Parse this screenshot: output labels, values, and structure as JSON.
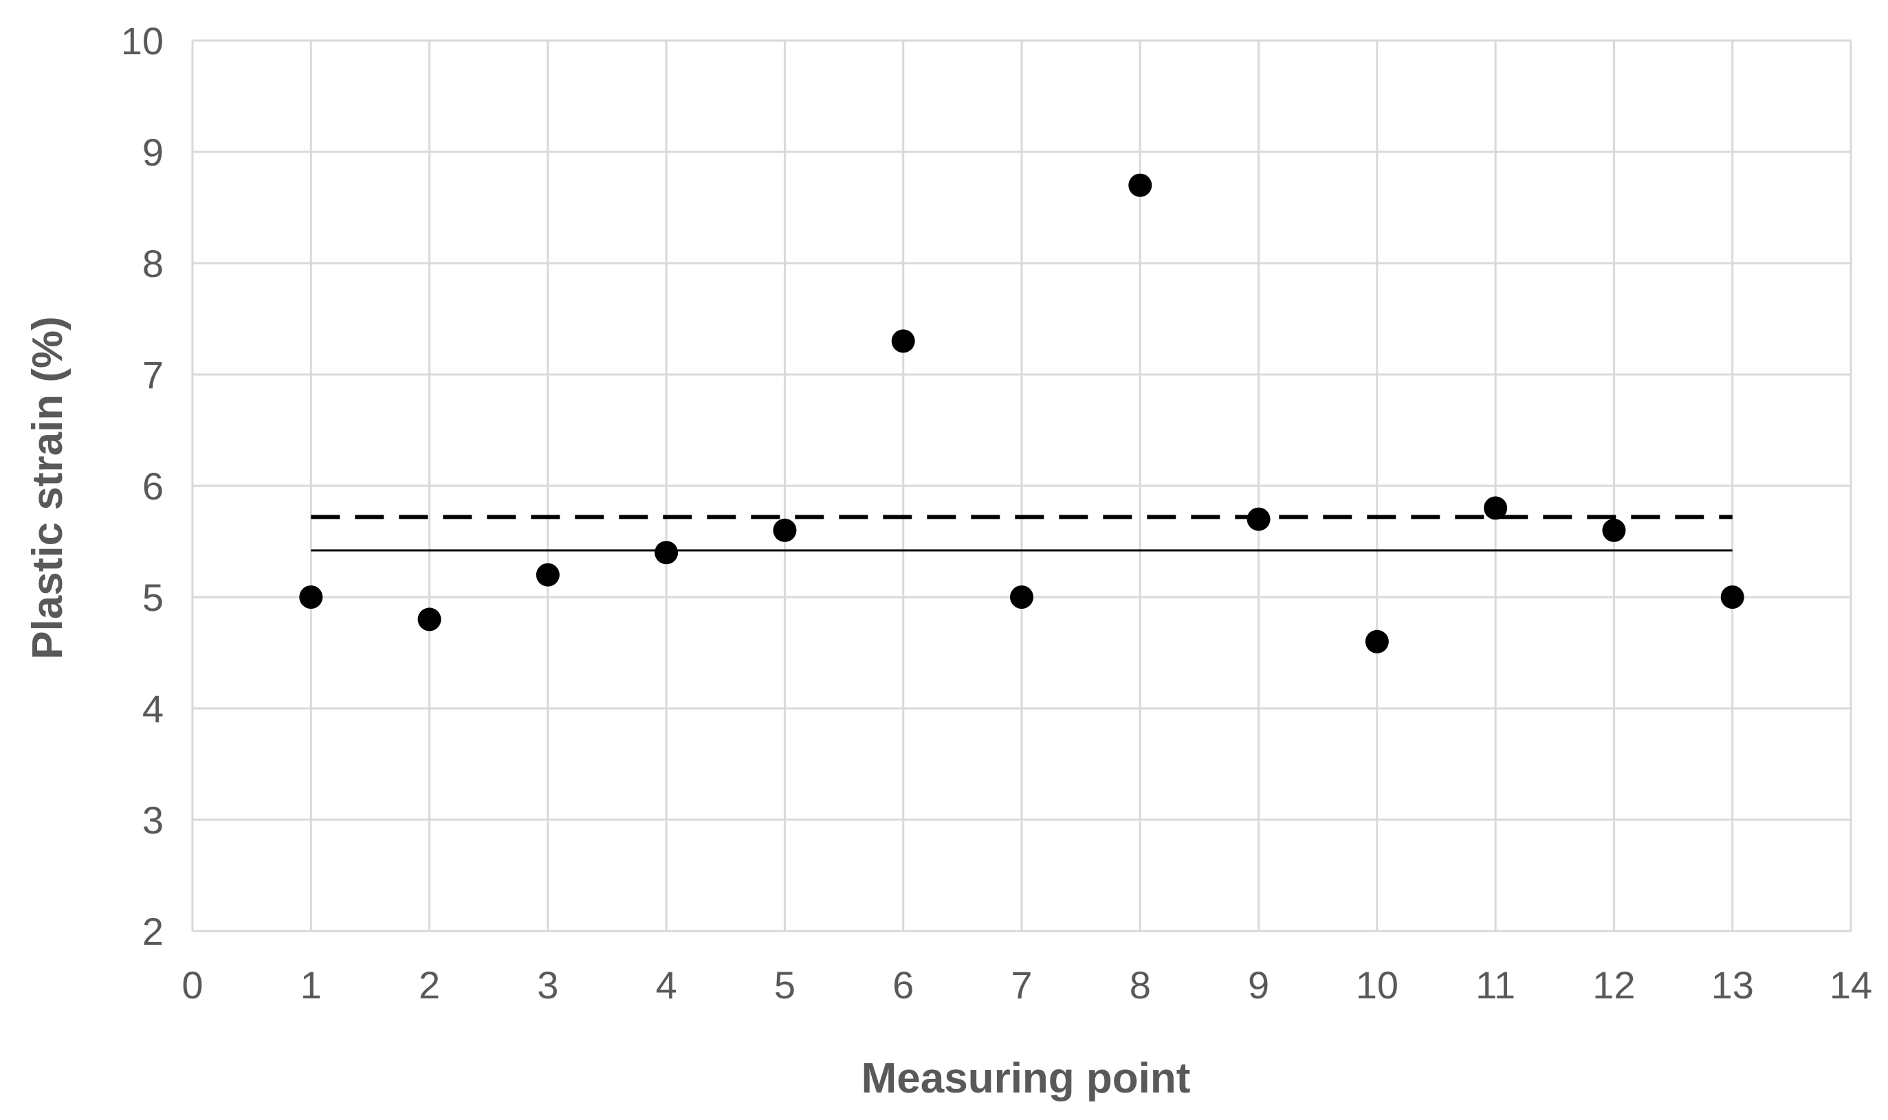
{
  "chart_data": {
    "type": "scatter",
    "title": "",
    "xlabel": "Measuring point",
    "ylabel": "Plastic strain (%)",
    "xlim": [
      0,
      14
    ],
    "ylim": [
      2,
      10
    ],
    "xticks": [
      0,
      1,
      2,
      3,
      4,
      5,
      6,
      7,
      8,
      9,
      10,
      11,
      12,
      13,
      14
    ],
    "yticks": [
      2,
      3,
      4,
      5,
      6,
      7,
      8,
      9,
      10
    ],
    "grid": true,
    "legend": "none",
    "series": [
      {
        "marker": "circle",
        "color": "#000000",
        "x": [
          1,
          2,
          3,
          4,
          5,
          6,
          7,
          8,
          9,
          10,
          11,
          12,
          13
        ],
        "y": [
          5.0,
          4.8,
          5.2,
          5.4,
          5.6,
          7.3,
          5.0,
          8.7,
          5.7,
          4.6,
          5.8,
          5.6,
          5.0
        ]
      }
    ],
    "reference_lines": [
      {
        "style": "dashed",
        "color": "#000000",
        "y": 5.72,
        "x_from": 1,
        "x_to": 13
      },
      {
        "style": "solid",
        "color": "#000000",
        "y": 5.42,
        "x_from": 1,
        "x_to": 13
      }
    ],
    "gridline_color": "#d9d9d9",
    "text_color": "#595959"
  }
}
